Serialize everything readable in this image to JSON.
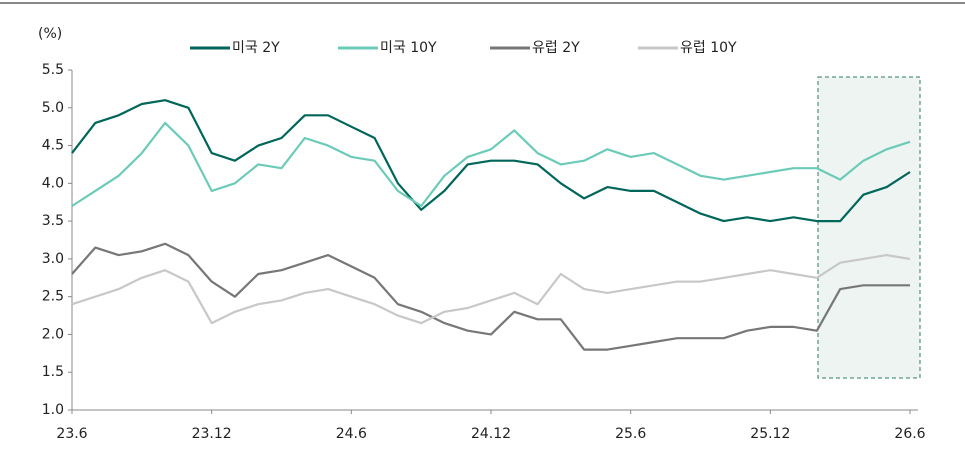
{
  "chart_data": {
    "type": "line",
    "y_label": "(%)",
    "categories": [
      "23.6",
      null,
      null,
      null,
      null,
      null,
      "23.12",
      null,
      null,
      null,
      null,
      null,
      "24.6",
      null,
      null,
      null,
      null,
      null,
      "24.12",
      null,
      null,
      null,
      null,
      null,
      "25.6",
      null,
      null,
      null,
      null,
      null,
      "25.12",
      null,
      null,
      null,
      null,
      null,
      "26.6"
    ],
    "series": [
      {
        "name": "미국 2Y",
        "color": "#00665a",
        "values": [
          4.4,
          4.8,
          4.9,
          5.05,
          5.1,
          5.0,
          4.4,
          4.3,
          4.5,
          4.6,
          4.9,
          4.9,
          4.75,
          4.6,
          4.0,
          3.65,
          3.9,
          4.25,
          4.3,
          4.3,
          4.25,
          4.0,
          3.8,
          3.95,
          3.9,
          3.9,
          3.75,
          3.6,
          3.5,
          3.55,
          3.5,
          3.55,
          3.5,
          3.5,
          3.85,
          3.95,
          4.15
        ]
      },
      {
        "name": "미국 10Y",
        "color": "#6ccbb8",
        "values": [
          3.7,
          3.9,
          4.1,
          4.4,
          4.8,
          4.5,
          3.9,
          4.0,
          4.25,
          4.2,
          4.6,
          4.5,
          4.35,
          4.3,
          3.9,
          3.7,
          4.1,
          4.35,
          4.45,
          4.7,
          4.4,
          4.25,
          4.3,
          4.45,
          4.35,
          4.4,
          4.25,
          4.1,
          4.05,
          4.1,
          4.15,
          4.2,
          4.2,
          4.05,
          4.3,
          4.45,
          4.55
        ]
      },
      {
        "name": "유럽 2Y",
        "color": "#777777",
        "values": [
          2.8,
          3.15,
          3.05,
          3.1,
          3.2,
          3.05,
          2.7,
          2.5,
          2.8,
          2.85,
          2.95,
          3.05,
          2.9,
          2.75,
          2.4,
          2.3,
          2.15,
          2.05,
          2.0,
          2.3,
          2.2,
          2.2,
          1.8,
          1.8,
          1.85,
          1.9,
          1.95,
          1.95,
          1.95,
          2.05,
          2.1,
          2.1,
          2.05,
          2.6,
          2.65,
          2.65,
          2.65
        ]
      },
      {
        "name": "유럽 10Y",
        "color": "#c8c8c8",
        "values": [
          2.4,
          2.5,
          2.6,
          2.75,
          2.85,
          2.7,
          2.15,
          2.3,
          2.4,
          2.45,
          2.55,
          2.6,
          2.5,
          2.4,
          2.25,
          2.15,
          2.3,
          2.35,
          2.45,
          2.55,
          2.4,
          2.8,
          2.6,
          2.55,
          2.6,
          2.65,
          2.7,
          2.7,
          2.75,
          2.8,
          2.85,
          2.8,
          2.75,
          2.95,
          3.0,
          3.05,
          3.0
        ]
      }
    ],
    "ylim": [
      1,
      5.5
    ],
    "yticks": [
      {
        "value": 1,
        "label": "1.0"
      },
      1.5,
      {
        "value": 2,
        "label": "2.0"
      },
      2.5,
      {
        "value": 3,
        "label": "3.0"
      },
      3.5,
      {
        "value": 4,
        "label": "4.0"
      },
      4.5,
      {
        "value": 5,
        "label": "5.0"
      },
      5.5
    ],
    "grid": false,
    "legend": "top"
  }
}
